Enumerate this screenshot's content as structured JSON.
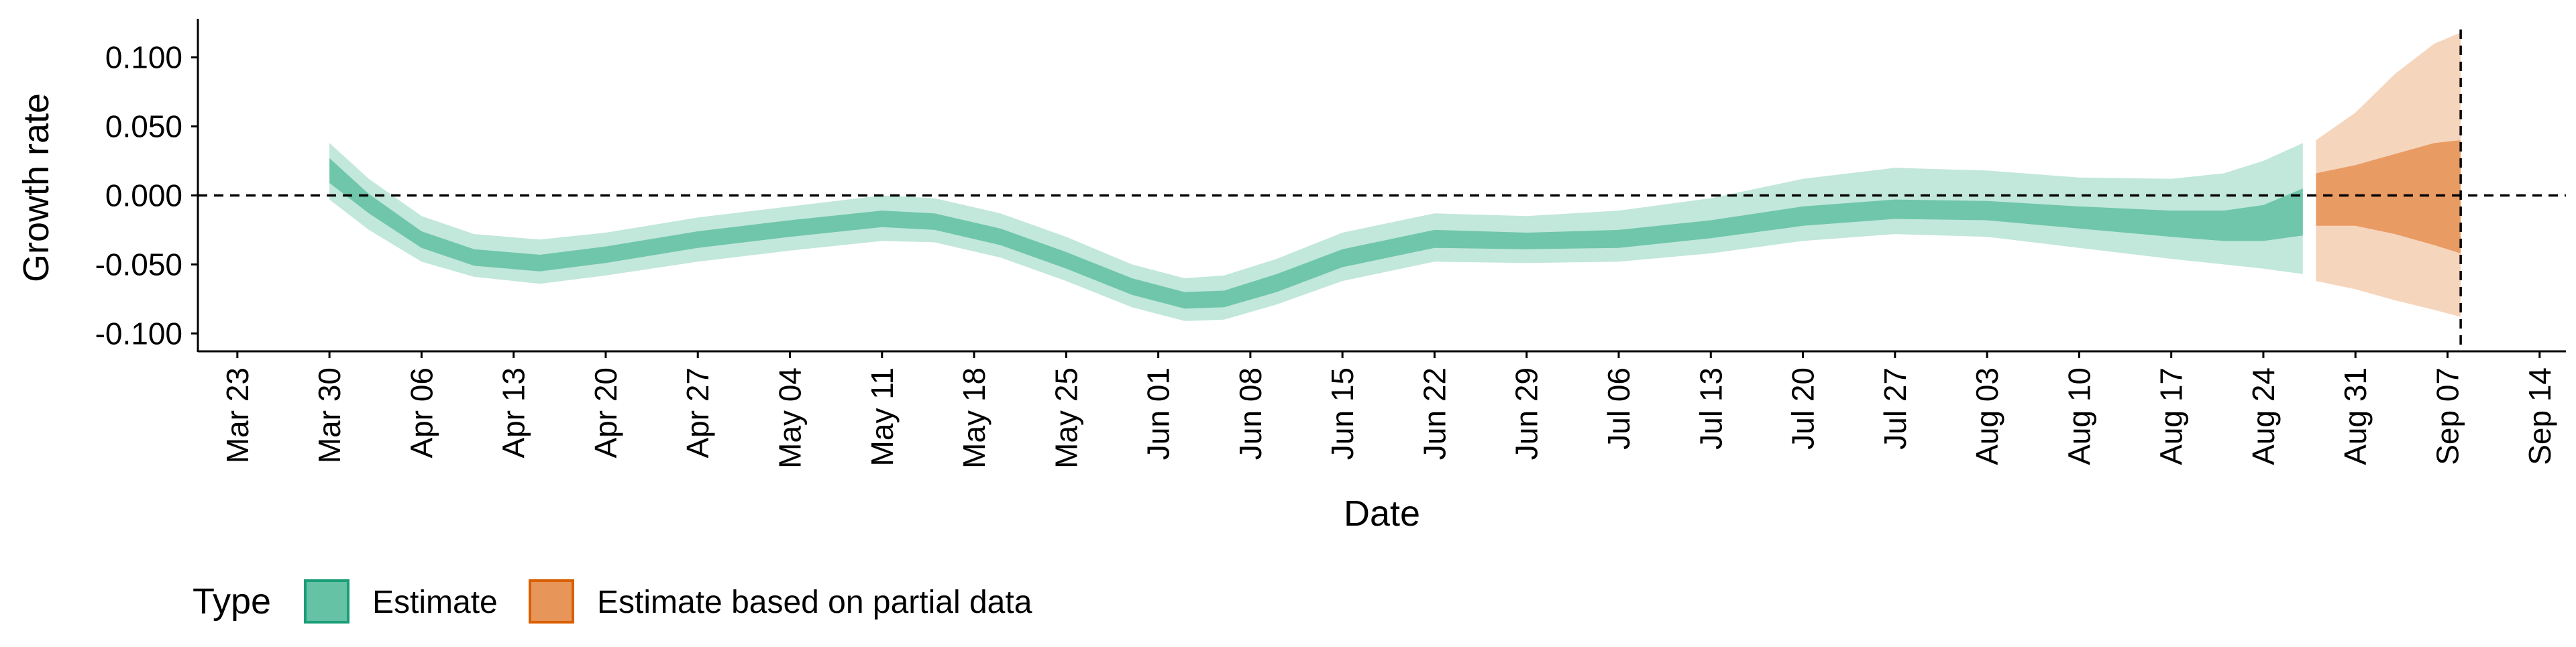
{
  "chart_data": {
    "type": "area",
    "xlabel": "Date",
    "ylabel": "Growth rate",
    "x_range": [
      "2020-03-20",
      "2020-09-16"
    ],
    "ylim": [
      -0.112,
      0.128
    ],
    "grid": false,
    "y_ticks": [
      {
        "value": 0.1,
        "label": "0.100"
      },
      {
        "value": 0.05,
        "label": "0.050"
      },
      {
        "value": 0.0,
        "label": "0.000"
      },
      {
        "value": -0.05,
        "label": "-0.050"
      },
      {
        "value": -0.1,
        "label": "-0.100"
      }
    ],
    "x_ticks": [
      {
        "date": "2020-03-23",
        "label": "Mar 23"
      },
      {
        "date": "2020-03-30",
        "label": "Mar 30"
      },
      {
        "date": "2020-04-06",
        "label": "Apr 06"
      },
      {
        "date": "2020-04-13",
        "label": "Apr 13"
      },
      {
        "date": "2020-04-20",
        "label": "Apr 20"
      },
      {
        "date": "2020-04-27",
        "label": "Apr 27"
      },
      {
        "date": "2020-05-04",
        "label": "May 04"
      },
      {
        "date": "2020-05-11",
        "label": "May 11"
      },
      {
        "date": "2020-05-18",
        "label": "May 18"
      },
      {
        "date": "2020-05-25",
        "label": "May 25"
      },
      {
        "date": "2020-06-01",
        "label": "Jun 01"
      },
      {
        "date": "2020-06-08",
        "label": "Jun 08"
      },
      {
        "date": "2020-06-15",
        "label": "Jun 15"
      },
      {
        "date": "2020-06-22",
        "label": "Jun 22"
      },
      {
        "date": "2020-06-29",
        "label": "Jun 29"
      },
      {
        "date": "2020-07-06",
        "label": "Jul 06"
      },
      {
        "date": "2020-07-13",
        "label": "Jul 13"
      },
      {
        "date": "2020-07-20",
        "label": "Jul 20"
      },
      {
        "date": "2020-07-27",
        "label": "Jul 27"
      },
      {
        "date": "2020-08-03",
        "label": "Aug 03"
      },
      {
        "date": "2020-08-10",
        "label": "Aug 10"
      },
      {
        "date": "2020-08-17",
        "label": "Aug 17"
      },
      {
        "date": "2020-08-24",
        "label": "Aug 24"
      },
      {
        "date": "2020-08-31",
        "label": "Aug 31"
      },
      {
        "date": "2020-09-07",
        "label": "Sep 07"
      },
      {
        "date": "2020-09-14",
        "label": "Sep 14"
      }
    ],
    "reference_lines": [
      {
        "axis": "y",
        "value": 0.0,
        "style": "dashed"
      },
      {
        "axis": "x",
        "date": "2020-09-08",
        "style": "dashed"
      }
    ],
    "legend": {
      "title": "Type",
      "position": "bottom-left",
      "entries": [
        {
          "label": "Estimate",
          "fill": "#66c2a5",
          "stroke": "#1b9e77"
        },
        {
          "label": "Estimate based on partial data",
          "fill": "#e8955a",
          "stroke": "#d95f02"
        }
      ]
    },
    "series": [
      {
        "name": "Estimate",
        "color": "#66c2a5",
        "points": [
          {
            "x": "2020-03-30",
            "lo90": -0.003,
            "lo50": 0.009,
            "median": 0.018,
            "hi50": 0.027,
            "hi90": 0.038
          },
          {
            "x": "2020-04-02",
            "lo90": -0.025,
            "lo50": -0.013,
            "median": -0.006,
            "hi50": 0.001,
            "hi90": 0.012
          },
          {
            "x": "2020-04-06",
            "lo90": -0.048,
            "lo50": -0.038,
            "median": -0.032,
            "hi50": -0.026,
            "hi90": -0.015
          },
          {
            "x": "2020-04-10",
            "lo90": -0.059,
            "lo50": -0.051,
            "median": -0.045,
            "hi50": -0.039,
            "hi90": -0.028
          },
          {
            "x": "2020-04-15",
            "lo90": -0.064,
            "lo50": -0.055,
            "median": -0.05,
            "hi50": -0.043,
            "hi90": -0.032
          },
          {
            "x": "2020-04-20",
            "lo90": -0.058,
            "lo50": -0.049,
            "median": -0.044,
            "hi50": -0.037,
            "hi90": -0.027
          },
          {
            "x": "2020-04-27",
            "lo90": -0.048,
            "lo50": -0.038,
            "median": -0.033,
            "hi50": -0.026,
            "hi90": -0.016
          },
          {
            "x": "2020-05-04",
            "lo90": -0.04,
            "lo50": -0.03,
            "median": -0.025,
            "hi50": -0.018,
            "hi90": -0.008
          },
          {
            "x": "2020-05-11",
            "lo90": -0.033,
            "lo50": -0.023,
            "median": -0.018,
            "hi50": -0.011,
            "hi90": 0.0
          },
          {
            "x": "2020-05-15",
            "lo90": -0.034,
            "lo50": -0.025,
            "median": -0.02,
            "hi50": -0.013,
            "hi90": -0.002
          },
          {
            "x": "2020-05-20",
            "lo90": -0.045,
            "lo50": -0.036,
            "median": -0.03,
            "hi50": -0.024,
            "hi90": -0.013
          },
          {
            "x": "2020-05-25",
            "lo90": -0.062,
            "lo50": -0.053,
            "median": -0.048,
            "hi50": -0.041,
            "hi90": -0.03
          },
          {
            "x": "2020-05-30",
            "lo90": -0.081,
            "lo50": -0.072,
            "median": -0.067,
            "hi50": -0.06,
            "hi90": -0.05
          },
          {
            "x": "2020-06-03",
            "lo90": -0.091,
            "lo50": -0.082,
            "median": -0.077,
            "hi50": -0.07,
            "hi90": -0.06
          },
          {
            "x": "2020-06-06",
            "lo90": -0.09,
            "lo50": -0.081,
            "median": -0.076,
            "hi50": -0.069,
            "hi90": -0.058
          },
          {
            "x": "2020-06-10",
            "lo90": -0.079,
            "lo50": -0.07,
            "median": -0.064,
            "hi50": -0.057,
            "hi90": -0.046
          },
          {
            "x": "2020-06-15",
            "lo90": -0.062,
            "lo50": -0.052,
            "median": -0.046,
            "hi50": -0.039,
            "hi90": -0.027
          },
          {
            "x": "2020-06-22",
            "lo90": -0.048,
            "lo50": -0.038,
            "median": -0.032,
            "hi50": -0.025,
            "hi90": -0.013
          },
          {
            "x": "2020-06-29",
            "lo90": -0.049,
            "lo50": -0.039,
            "median": -0.034,
            "hi50": -0.027,
            "hi90": -0.015
          },
          {
            "x": "2020-07-06",
            "lo90": -0.048,
            "lo50": -0.038,
            "median": -0.032,
            "hi50": -0.025,
            "hi90": -0.011
          },
          {
            "x": "2020-07-13",
            "lo90": -0.042,
            "lo50": -0.031,
            "median": -0.025,
            "hi50": -0.018,
            "hi90": -0.002
          },
          {
            "x": "2020-07-20",
            "lo90": -0.033,
            "lo50": -0.022,
            "median": -0.015,
            "hi50": -0.008,
            "hi90": 0.012
          },
          {
            "x": "2020-07-27",
            "lo90": -0.028,
            "lo50": -0.017,
            "median": -0.01,
            "hi50": -0.003,
            "hi90": 0.02
          },
          {
            "x": "2020-08-03",
            "lo90": -0.03,
            "lo50": -0.018,
            "median": -0.011,
            "hi50": -0.004,
            "hi90": 0.018
          },
          {
            "x": "2020-08-10",
            "lo90": -0.038,
            "lo50": -0.024,
            "median": -0.016,
            "hi50": -0.008,
            "hi90": 0.013
          },
          {
            "x": "2020-08-17",
            "lo90": -0.046,
            "lo50": -0.03,
            "median": -0.02,
            "hi50": -0.011,
            "hi90": 0.012
          },
          {
            "x": "2020-08-21",
            "lo90": -0.05,
            "lo50": -0.033,
            "median": -0.022,
            "hi50": -0.011,
            "hi90": 0.016
          },
          {
            "x": "2020-08-24",
            "lo90": -0.053,
            "lo50": -0.033,
            "median": -0.02,
            "hi50": -0.007,
            "hi90": 0.025
          },
          {
            "x": "2020-08-27",
            "lo90": -0.057,
            "lo50": -0.029,
            "median": -0.012,
            "hi50": 0.005,
            "hi90": 0.038
          }
        ]
      },
      {
        "name": "Estimate based on partial data",
        "color": "#e8955a",
        "points": [
          {
            "x": "2020-08-28",
            "lo90": -0.062,
            "lo50": -0.022,
            "median": -0.003,
            "hi50": 0.016,
            "hi90": 0.04
          },
          {
            "x": "2020-08-31",
            "lo90": -0.068,
            "lo50": -0.022,
            "median": 0.0,
            "hi50": 0.022,
            "hi90": 0.06
          },
          {
            "x": "2020-09-03",
            "lo90": -0.076,
            "lo50": -0.028,
            "median": 0.0,
            "hi50": 0.03,
            "hi90": 0.088
          },
          {
            "x": "2020-09-06",
            "lo90": -0.083,
            "lo50": -0.036,
            "median": 0.0,
            "hi50": 0.038,
            "hi90": 0.11
          },
          {
            "x": "2020-09-08",
            "lo90": -0.088,
            "lo50": -0.042,
            "median": 0.0,
            "hi50": 0.04,
            "hi90": 0.118
          }
        ]
      }
    ]
  }
}
